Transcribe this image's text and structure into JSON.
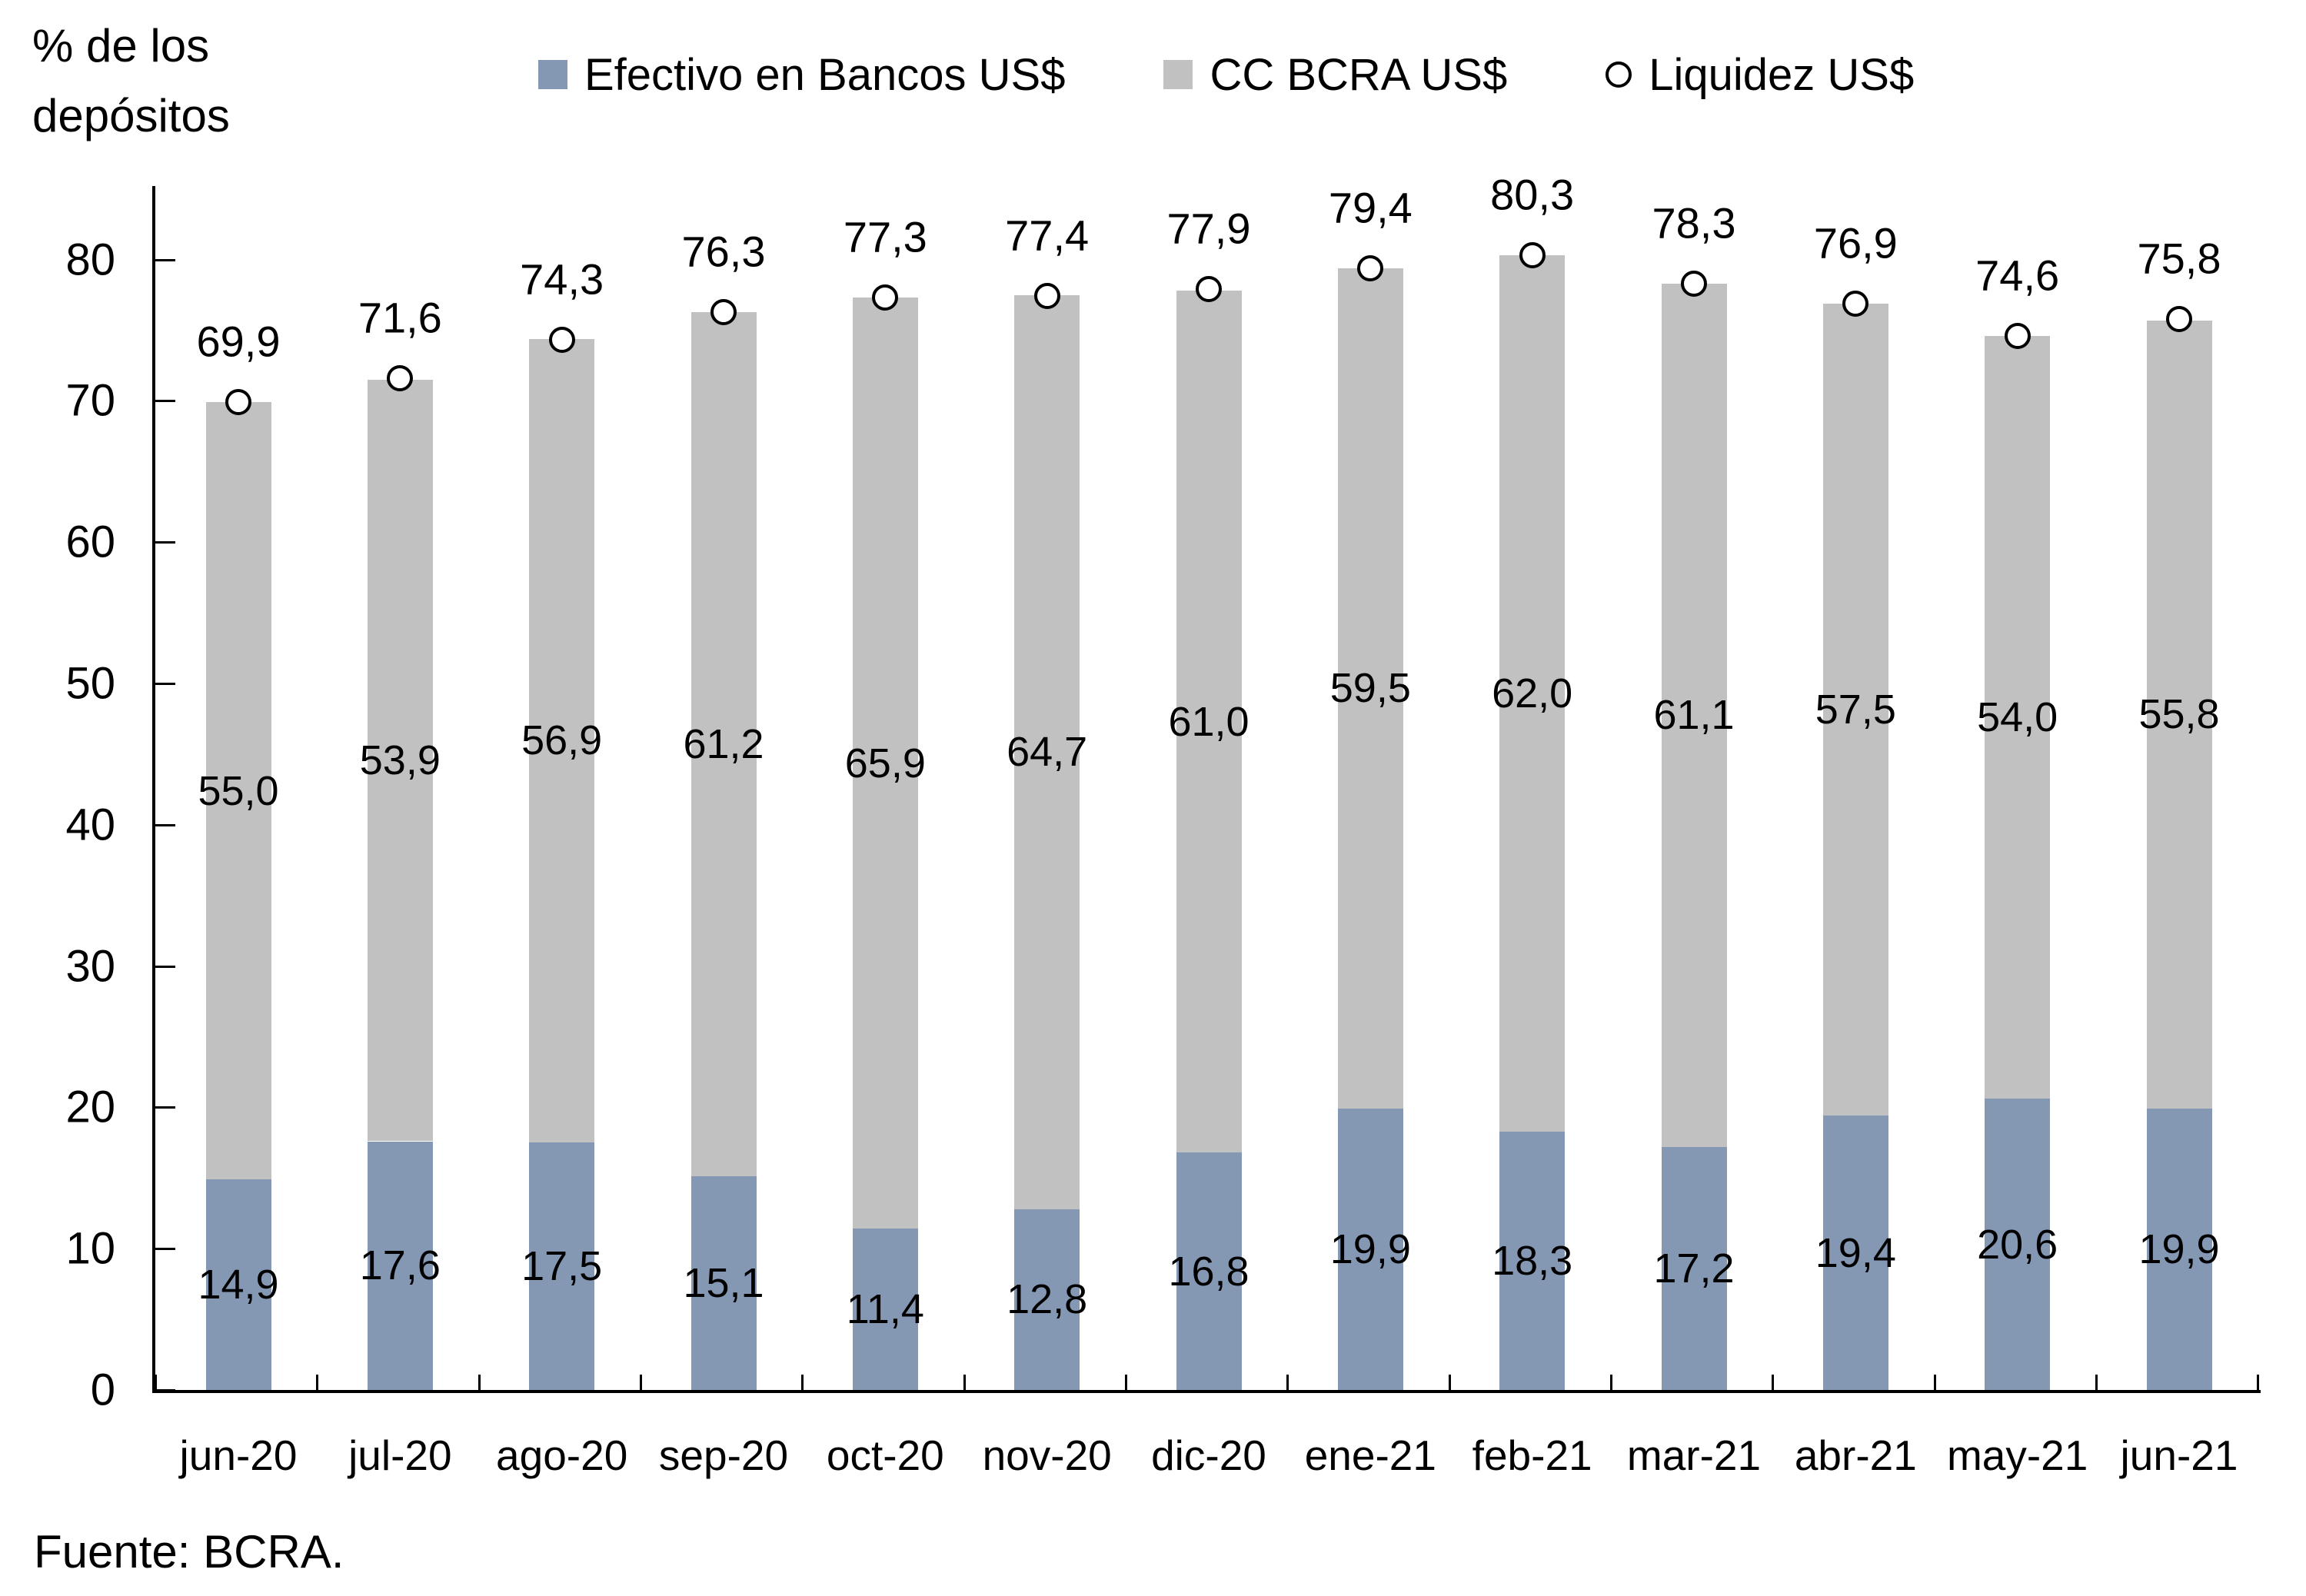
{
  "title": "% de los depósitos",
  "source": "Fuente: BCRA.",
  "legend": {
    "efectivo_label": "Efectivo en Bancos US$",
    "cc_bcra_label": "CC BCRA US$",
    "liquidez_label": "Liquidez US$"
  },
  "chart_data": {
    "type": "bar",
    "stacked": true,
    "title": "% de los depósitos",
    "ylabel": "% de los depósitos",
    "xlabel": "",
    "source": "Fuente: BCRA.",
    "grid": false,
    "legend_position": "top",
    "decimal_separator": ",",
    "ylim": [
      0,
      85.2
    ],
    "yticks": [
      0,
      10,
      20,
      30,
      40,
      50,
      60,
      70,
      80
    ],
    "categories": [
      "jun-20",
      "jul-20",
      "ago-20",
      "sep-20",
      "oct-20",
      "nov-20",
      "dic-20",
      "ene-21",
      "feb-21",
      "mar-21",
      "abr-21",
      "may-21",
      "jun-21"
    ],
    "series": [
      {
        "name": "Efectivo en Bancos US$",
        "type": "bar",
        "color": "#8498B4",
        "values": [
          14.9,
          17.6,
          17.5,
          15.1,
          11.4,
          12.8,
          16.8,
          19.9,
          18.3,
          17.2,
          19.4,
          20.6,
          19.9
        ]
      },
      {
        "name": "CC BCRA US$",
        "type": "bar",
        "color": "#C1C1C1",
        "values": [
          55.0,
          53.9,
          56.9,
          61.2,
          65.9,
          64.7,
          61.0,
          59.5,
          62.0,
          61.1,
          57.5,
          54.0,
          55.8
        ]
      },
      {
        "name": "Liquidez US$",
        "type": "scatter",
        "marker": "open-circle",
        "color": "#000000",
        "values": [
          69.9,
          71.6,
          74.3,
          76.3,
          77.3,
          77.4,
          77.9,
          79.4,
          80.3,
          78.3,
          76.9,
          74.6,
          75.8
        ]
      }
    ]
  }
}
